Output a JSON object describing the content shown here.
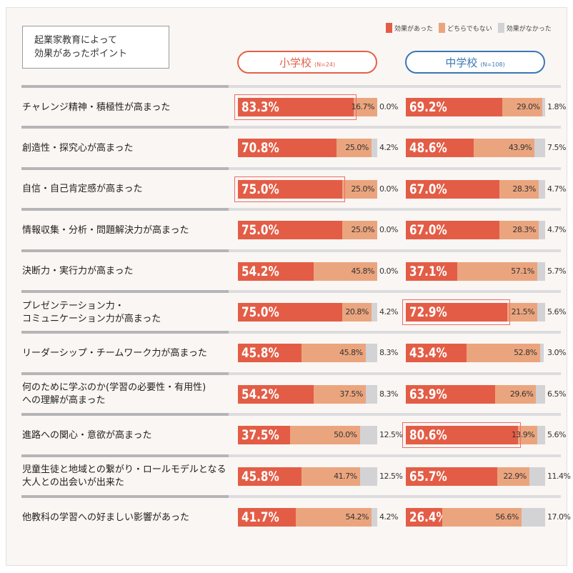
{
  "chart_data": {
    "type": "bar",
    "stacked": true,
    "orientation": "horizontal",
    "title": "起業家教育によって\n効果があったポイント",
    "title_lines": [
      "起業家教育によって",
      "効果があったポイント"
    ],
    "legend": {
      "placement": "top-right",
      "entries": [
        "効果があった",
        "どちらでもない",
        "効果がなかった"
      ]
    },
    "colors": {
      "effective": "#e35d46",
      "neutral": "#eba57e",
      "not_effective": "#d3d3d6"
    },
    "groups": [
      {
        "name": "小学校",
        "n": "(N=24)",
        "color": "#e4604b"
      },
      {
        "name": "中学校",
        "n": "(N=108)",
        "color": "#3b78b5"
      }
    ],
    "categories": [
      [
        "チャレンジ精神・積極性が高まった"
      ],
      [
        "創造性・探究心が高まった"
      ],
      [
        "自信・自己肯定感が高まった"
      ],
      [
        "情報収集・分析・問題解決力が高まった"
      ],
      [
        "決断力・実行力が高まった"
      ],
      [
        "プレゼンテーション力・",
        "コミュニケーション力が高まった"
      ],
      [
        "リーダーシップ・チームワーク力が高まった"
      ],
      [
        "何のために学ぶのか(学習の必要性・有用性)",
        "への理解が高まった"
      ],
      [
        "進路への関心・意欲が高まった"
      ],
      [
        "児童生徒と地域との繋がり・ロールモデルとなる",
        "大人との出会いが出来た"
      ],
      [
        "他教科の学習への好ましい影響があった"
      ]
    ],
    "elementary": [
      [
        83.3,
        16.7,
        0.0
      ],
      [
        70.8,
        25.0,
        4.2
      ],
      [
        75.0,
        25.0,
        0.0
      ],
      [
        75.0,
        25.0,
        0.0
      ],
      [
        54.2,
        45.8,
        0.0
      ],
      [
        75.0,
        20.8,
        4.2
      ],
      [
        45.8,
        45.8,
        8.3
      ],
      [
        54.2,
        37.5,
        8.3
      ],
      [
        37.5,
        50.0,
        12.5
      ],
      [
        45.8,
        41.7,
        12.5
      ],
      [
        41.7,
        54.2,
        4.2
      ]
    ],
    "junior_high": [
      [
        69.2,
        29.0,
        1.8
      ],
      [
        48.6,
        43.9,
        7.5
      ],
      [
        67.0,
        28.3,
        4.7
      ],
      [
        67.0,
        28.3,
        4.7
      ],
      [
        37.1,
        57.1,
        5.7
      ],
      [
        72.9,
        21.5,
        5.6
      ],
      [
        43.4,
        52.8,
        3.0
      ],
      [
        63.9,
        29.6,
        6.5
      ],
      [
        80.6,
        13.9,
        5.6
      ],
      [
        65.7,
        22.9,
        11.4
      ],
      [
        26.4,
        56.6,
        17.0
      ]
    ],
    "highlighted": {
      "elementary": [
        0,
        2
      ],
      "junior_high": [
        5,
        8
      ]
    },
    "unit": "%"
  }
}
